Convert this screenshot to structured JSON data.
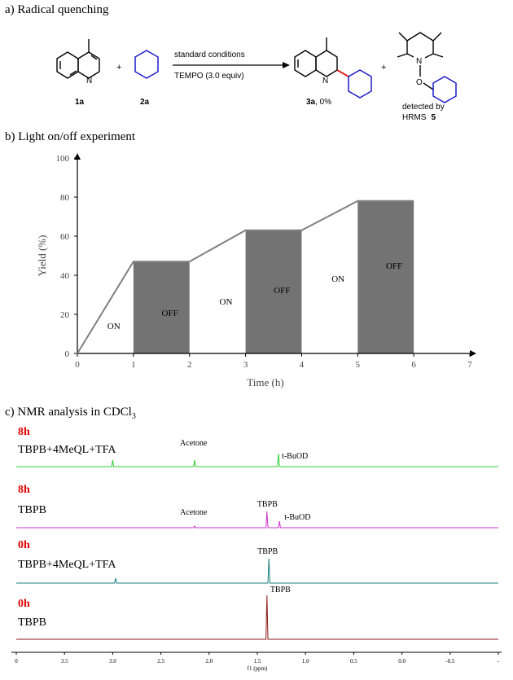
{
  "section_a": {
    "title": "a) Radical quenching",
    "reactant1": "1a",
    "reactant2": "2a",
    "plus": "+",
    "arrow_top": "standard conditions",
    "arrow_bottom": "TEMPO (3.0 equiv)",
    "product_label": "3a",
    "product_yield": ", 0%",
    "adduct_caption_1": "detected by",
    "adduct_caption_2": "HRMS",
    "adduct_label": "5",
    "atom_N": "N",
    "atom_O": "O"
  },
  "section_b": {
    "title": "b) Light on/off experiment",
    "region_labels": [
      "ON",
      "OFF",
      "ON",
      "OFF",
      "ON",
      "OFF"
    ]
  },
  "chart_data": {
    "type": "line",
    "xlabel": "Time (h)",
    "ylabel": "Yield (%)",
    "xlim": [
      0,
      7
    ],
    "ylim": [
      0,
      100
    ],
    "x_ticks": [
      "0",
      "1",
      "2",
      "3",
      "4",
      "5",
      "6",
      "7"
    ],
    "y_ticks": [
      "0",
      "20",
      "40",
      "60",
      "80",
      "100"
    ],
    "x": [
      0,
      1,
      2,
      3,
      4,
      5,
      6
    ],
    "values": [
      0,
      47,
      47,
      63,
      63,
      78,
      78
    ],
    "off_intervals": [
      [
        1,
        2
      ],
      [
        3,
        4
      ],
      [
        5,
        6
      ]
    ],
    "colors": {
      "line": "#808080",
      "off_fill": "#737373"
    }
  },
  "section_c": {
    "title_prefix": "c) NMR analysis in CDCl",
    "title_sub": "3",
    "spectra": [
      {
        "time": "8h",
        "sample": "TBPB+4MeQL+TFA",
        "color": "#33cc33",
        "peak_labels": [
          "Acetone",
          "t-BuOD"
        ]
      },
      {
        "time": "8h",
        "sample": "TBPB",
        "color": "#cc33cc",
        "peak_labels": [
          "Acetone",
          "TBPB",
          "t-BuOD"
        ]
      },
      {
        "time": "0h",
        "sample": "TBPB+4MeQL+TFA",
        "color": "#1a8080",
        "peak_labels": [
          "TBPB"
        ]
      },
      {
        "time": "0h",
        "sample": "TBPB",
        "color": "#8b1a1a",
        "peak_labels": [
          "TBPB"
        ]
      }
    ],
    "ppm_ticks": [
      "0",
      "3.5",
      "3.0",
      "2.5",
      "2.0",
      "1.5",
      "1.0",
      "0.5",
      "0.0",
      "-0.5",
      "-"
    ],
    "axis_label": "f1 (ppm)",
    "time_color": "#e00000"
  }
}
